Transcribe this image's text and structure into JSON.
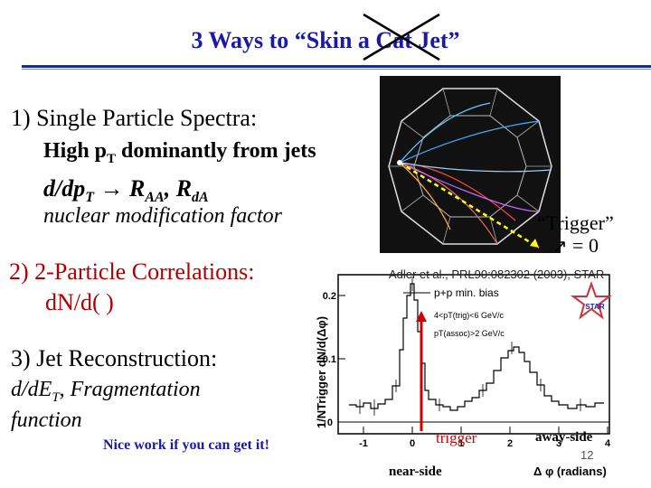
{
  "title": "3 Ways to “Skin a Cat Jet”",
  "s1": {
    "heading": "1) Single Particle Spectra:",
    "line1_a": "High p",
    "line1_sub": "T",
    "line1_b": " dominantly from jets",
    "line2": "d/dp",
    "line2_sub": "T",
    "line2_arrow": "",
    "line2_raa": "R",
    "line2_raa_sub": "AA",
    "line2_sep": ", R",
    "line2_rda_sub": "dA",
    "line3": "nuclear modification factor"
  },
  "s2": {
    "heading": "2) 2-Particle Correlations:",
    "formula": "dN/d( )"
  },
  "s3": {
    "heading": "3) Jet Reconstruction:",
    "line1": "d/dE",
    "line1_sub": "T",
    "line1_rest": ", Fragmentation",
    "line2": "function",
    "note": "Nice work if you can get it!"
  },
  "event": {
    "trigger_label": "“Trigger”",
    "trigger_eq": "= 0"
  },
  "plot": {
    "citation": "Adler et al., PRL90:082302 (2003), STAR",
    "legend": "p+p min. bias",
    "cut1": "4<pT(trig)<6 GeV/c",
    "cut2": "pT(assoc)>2 GeV/c",
    "ylabel": "1/NTrigger dN/d(Δφ)",
    "xlabel": "Δ φ (radians)",
    "yticks": [
      "0",
      "0.1",
      "0.2"
    ],
    "xticks": [
      "-1",
      "0",
      "1",
      "2",
      "3",
      "4"
    ],
    "trigger_label": "trigger",
    "near_side": "near-side",
    "away_side": "away-side",
    "star_logo": "STAR"
  },
  "page_number": "12"
}
